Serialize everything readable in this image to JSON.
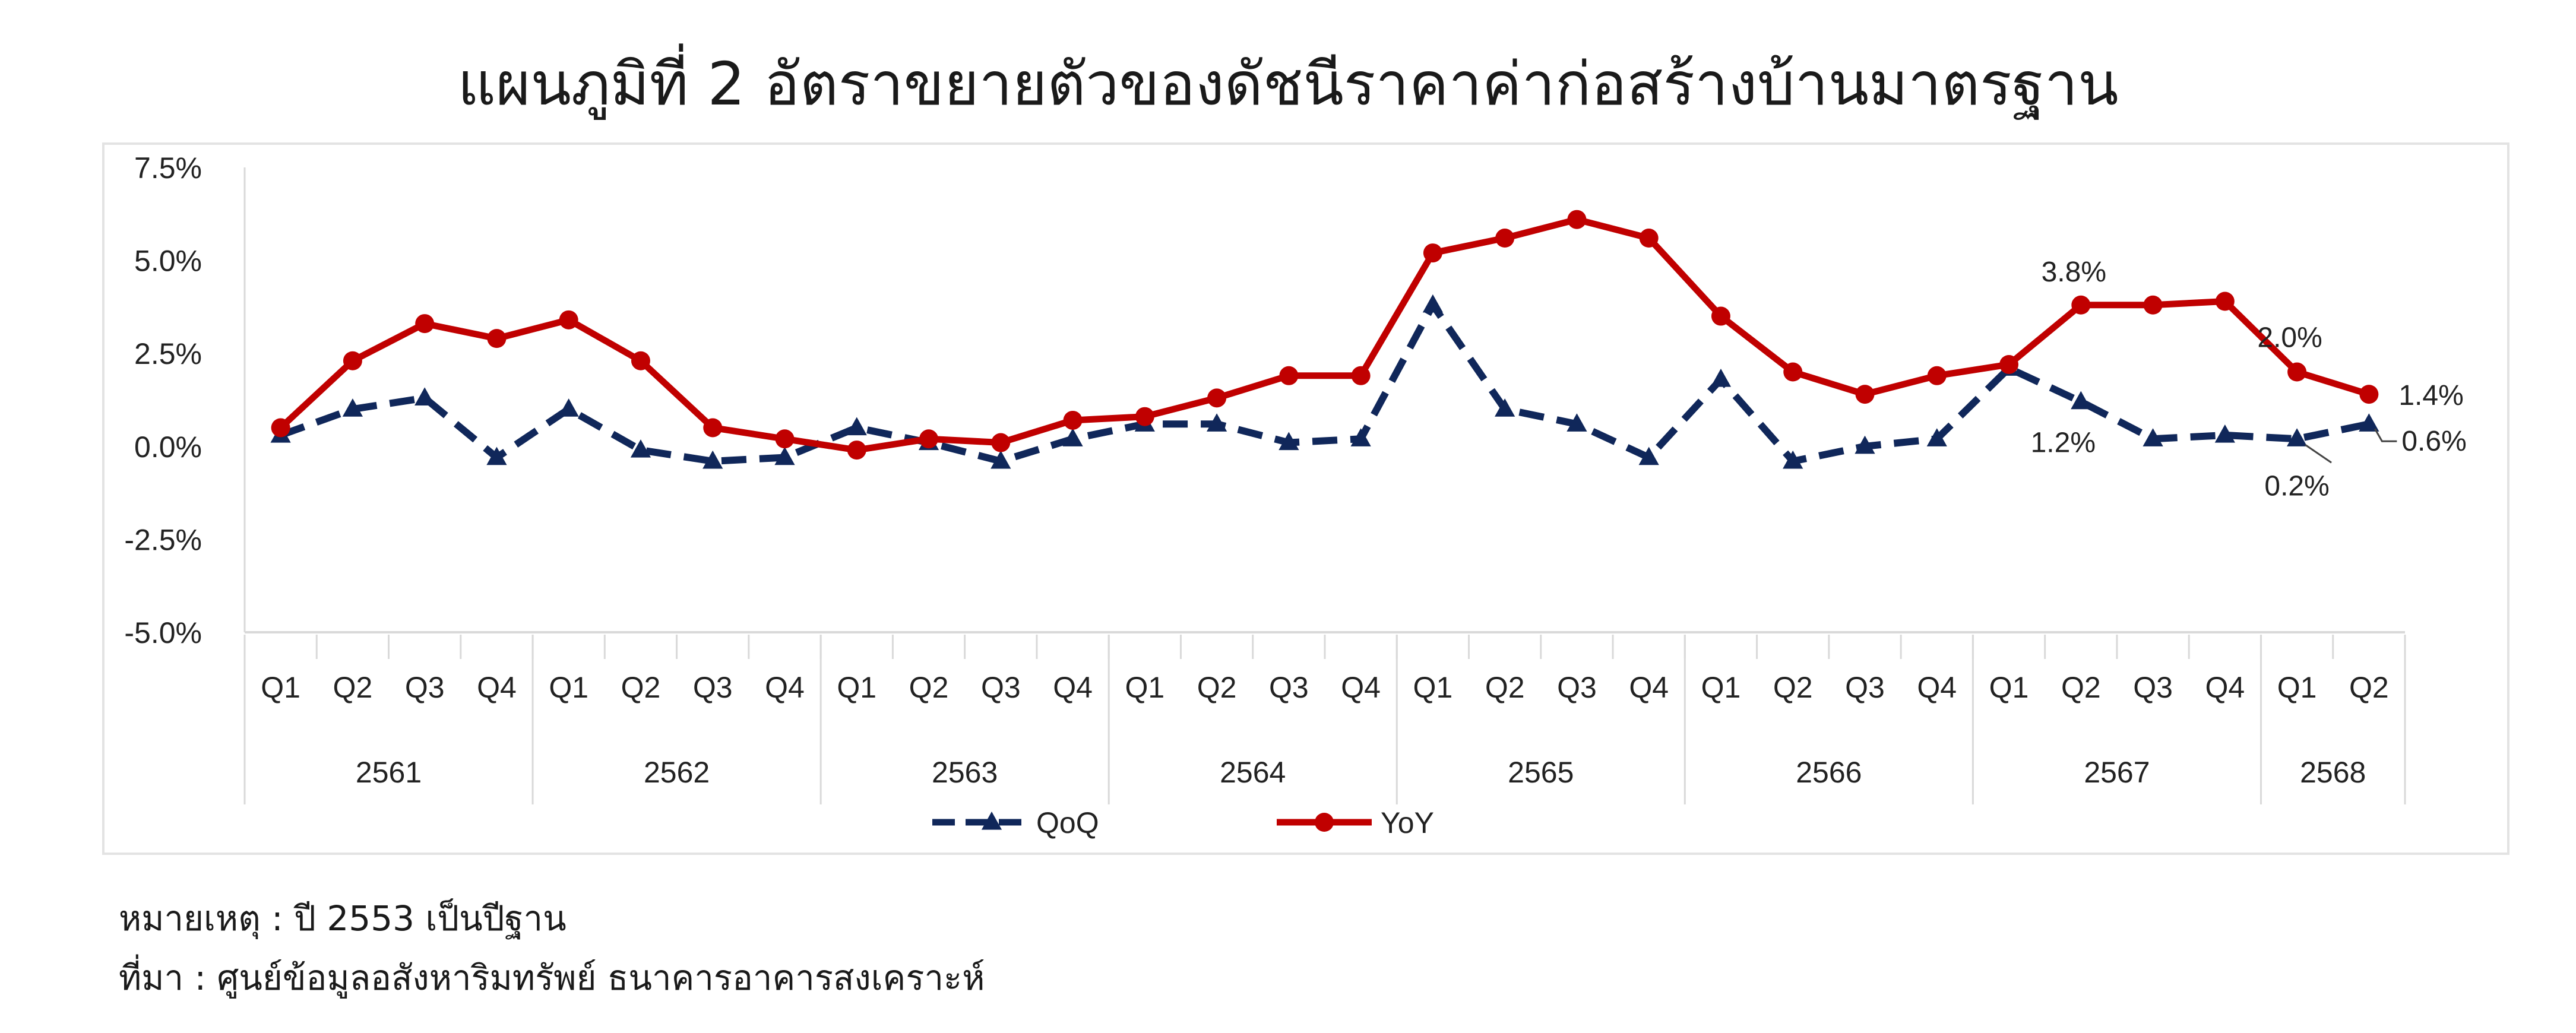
{
  "chart_data": {
    "type": "line",
    "title": "แผนภูมิที่ 2 อัตราขยายตัวของดัชนีราคาค่าก่อสร้างบ้านมาตรฐาน",
    "y_ticks": [
      "7.5%",
      "5.0%",
      "2.5%",
      "0.0%",
      "-2.5%",
      "-5.0%"
    ],
    "ylim": [
      -5.0,
      7.5
    ],
    "categories": [
      "Q1",
      "Q2",
      "Q3",
      "Q4",
      "Q1",
      "Q2",
      "Q3",
      "Q4",
      "Q1",
      "Q2",
      "Q3",
      "Q4",
      "Q1",
      "Q2",
      "Q3",
      "Q4",
      "Q1",
      "Q2",
      "Q3",
      "Q4",
      "Q1",
      "Q2",
      "Q3",
      "Q4",
      "Q1",
      "Q2",
      "Q3",
      "Q4",
      "Q1",
      "Q2"
    ],
    "year_groups": [
      {
        "label": "2561",
        "count": 4
      },
      {
        "label": "2562",
        "count": 4
      },
      {
        "label": "2563",
        "count": 4
      },
      {
        "label": "2564",
        "count": 4
      },
      {
        "label": "2565",
        "count": 4
      },
      {
        "label": "2566",
        "count": 4
      },
      {
        "label": "2567",
        "count": 4
      },
      {
        "label": "2568",
        "count": 2
      }
    ],
    "series": [
      {
        "name": "QoQ",
        "color": "#10275a",
        "style": "dashed",
        "marker": "triangle",
        "values": [
          0.3,
          1.0,
          1.3,
          -0.3,
          1.0,
          -0.1,
          -0.4,
          -0.3,
          0.5,
          0.1,
          -0.4,
          0.2,
          0.6,
          0.6,
          0.1,
          0.2,
          3.8,
          1.0,
          0.6,
          -0.3,
          1.8,
          -0.4,
          0.0,
          0.2,
          2.1,
          1.2,
          0.2,
          0.3,
          0.2,
          0.6
        ]
      },
      {
        "name": "YoY",
        "color": "#c00000",
        "style": "solid",
        "marker": "circle",
        "values": [
          0.5,
          2.3,
          3.3,
          2.9,
          3.4,
          2.3,
          0.5,
          0.2,
          -0.1,
          0.2,
          0.1,
          0.7,
          0.8,
          1.3,
          1.9,
          1.9,
          5.2,
          5.6,
          6.1,
          5.6,
          3.5,
          2.0,
          1.4,
          1.9,
          2.2,
          3.8,
          3.8,
          3.9,
          2.0,
          1.4
        ]
      }
    ],
    "annotations": [
      {
        "text": "3.8%",
        "series": "YoY",
        "index": 25
      },
      {
        "text": "2.0%",
        "series": "YoY",
        "index": 28
      },
      {
        "text": "1.4%",
        "series": "YoY",
        "index": 29
      },
      {
        "text": "1.2%",
        "series": "QoQ",
        "index": 25
      },
      {
        "text": "0.2%",
        "series": "QoQ",
        "index": 28
      },
      {
        "text": "0.6%",
        "series": "QoQ",
        "index": 29
      }
    ],
    "legend_position": "bottom"
  },
  "notes": {
    "note": "หมายเหตุ : ปี 2553 เป็นปีฐาน",
    "source": "ที่มา : ศูนย์ข้อมูลอสังหาริมทรัพย์ ธนาคารอาคารสงเคราะห์"
  }
}
